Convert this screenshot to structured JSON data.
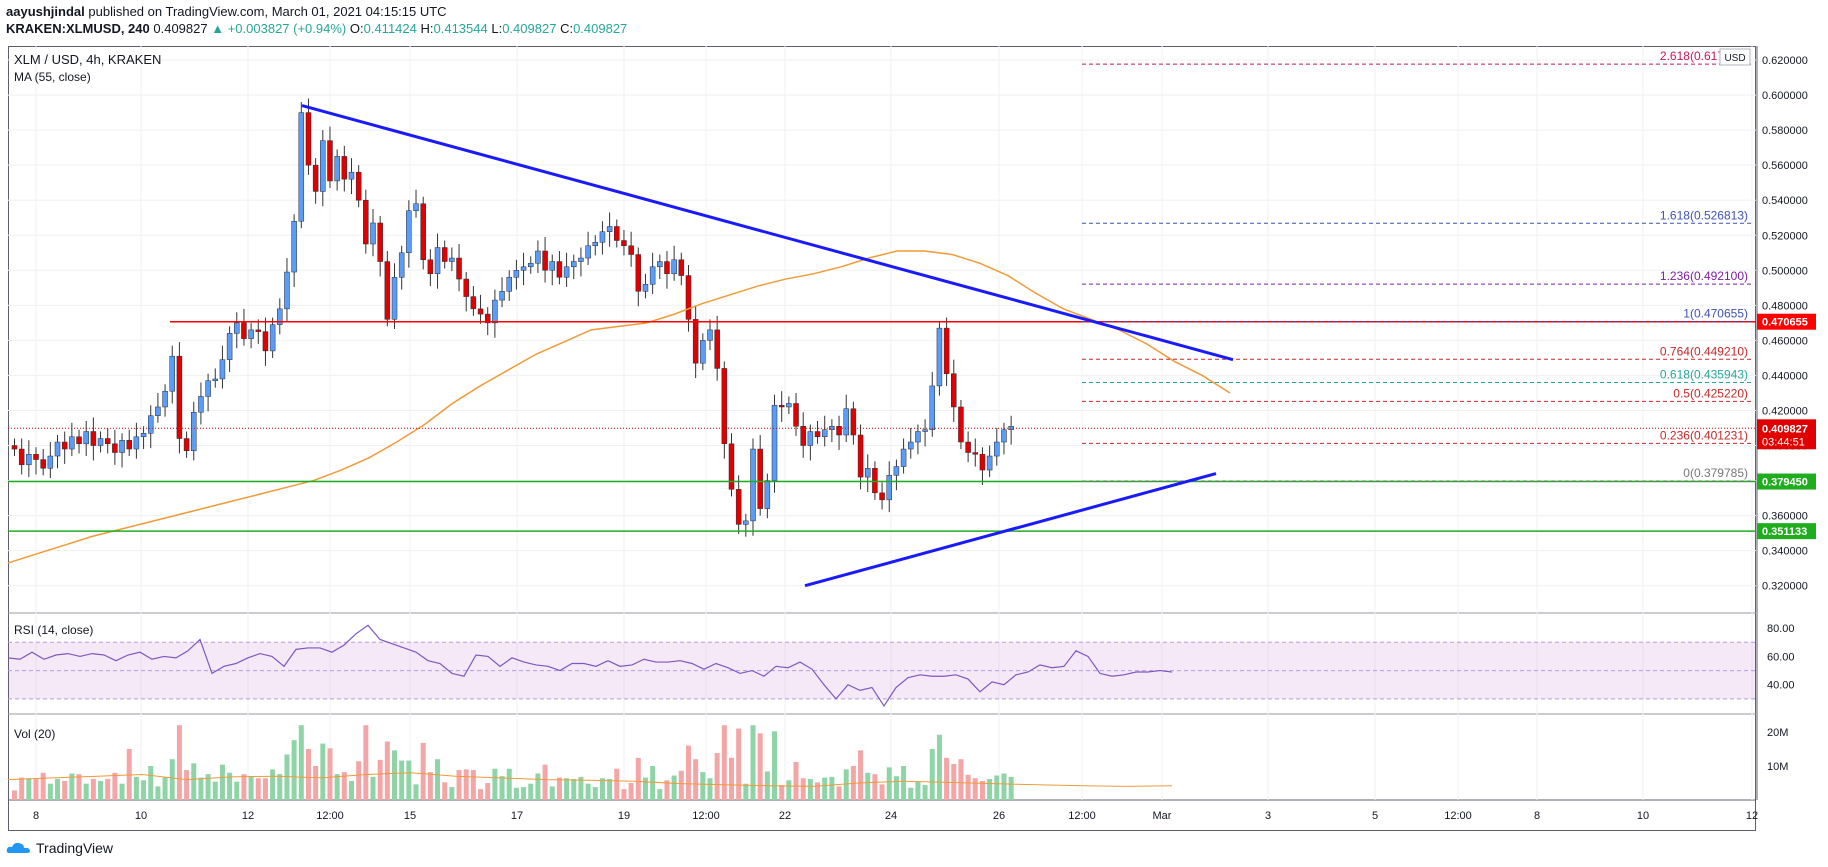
{
  "header": {
    "publisher": "aayushjindal",
    "published_text": "published on TradingView.com, March 01, 2021 04:15:15 UTC",
    "symbol": "KRAKEN:XLMUSD, 240",
    "last": "0.409827",
    "change": "▲ +0.003827 (+0.94%)",
    "o_label": "O:",
    "o": "0.411424",
    "h_label": "H:",
    "h": "0.413544",
    "l_label": "L:",
    "l": "0.409827",
    "c_label": "C:",
    "c": "0.409827"
  },
  "pane_main": {
    "title": "XLM / USD, 4h, KRAKEN",
    "ma_label": "MA (55, close)",
    "currency": "USD"
  },
  "pane_rsi": {
    "label": "RSI (14, close)"
  },
  "pane_vol": {
    "label": "Vol (20)"
  },
  "footer": {
    "brand": "TradingView"
  },
  "colors": {
    "up": "#5b9cf6",
    "down": "#e00000",
    "ma": "#f09a38",
    "trend": "#1a1aff",
    "resistance": "#ff0000",
    "support": "#1fad1f"
  },
  "chart_data": {
    "type": "candlestick",
    "title": "XLM / USD, 4h, KRAKEN",
    "ylim": [
      0.305,
      0.628
    ],
    "y_ticks": [
      "0.620000",
      "0.600000",
      "0.580000",
      "0.560000",
      "0.540000",
      "0.520000",
      "0.500000",
      "0.480000",
      "0.460000",
      "0.440000",
      "0.420000",
      "0.400000",
      "0.380000",
      "0.360000",
      "0.340000",
      "0.320000"
    ],
    "x_ticks": [
      "8",
      "10",
      "12",
      "12:00",
      "15",
      "17",
      "19",
      "12:00",
      "22",
      "24",
      "26",
      "12:00",
      "Mar",
      "3",
      "5",
      "12:00",
      "8",
      "10",
      "12"
    ],
    "ohlc_close": [
      0.398,
      0.389,
      0.395,
      0.392,
      0.387,
      0.394,
      0.402,
      0.398,
      0.405,
      0.401,
      0.408,
      0.4,
      0.404,
      0.401,
      0.396,
      0.403,
      0.398,
      0.405,
      0.407,
      0.417,
      0.422,
      0.431,
      0.451,
      0.404,
      0.397,
      0.419,
      0.428,
      0.437,
      0.438,
      0.449,
      0.464,
      0.47,
      0.461,
      0.466,
      0.465,
      0.454,
      0.469,
      0.478,
      0.499,
      0.528,
      0.59,
      0.56,
      0.545,
      0.574,
      0.551,
      0.565,
      0.552,
      0.556,
      0.54,
      0.515,
      0.527,
      0.505,
      0.472,
      0.496,
      0.51,
      0.534,
      0.538,
      0.506,
      0.498,
      0.513,
      0.505,
      0.507,
      0.495,
      0.485,
      0.478,
      0.475,
      0.47,
      0.483,
      0.488,
      0.496,
      0.5,
      0.502,
      0.504,
      0.511,
      0.5,
      0.505,
      0.496,
      0.502,
      0.505,
      0.507,
      0.514,
      0.516,
      0.522,
      0.525,
      0.517,
      0.514,
      0.509,
      0.488,
      0.492,
      0.502,
      0.505,
      0.498,
      0.506,
      0.497,
      0.472,
      0.447,
      0.46,
      0.466,
      0.444,
      0.401,
      0.375,
      0.355,
      0.357,
      0.398,
      0.364,
      0.38,
      0.423,
      0.422,
      0.424,
      0.411,
      0.4,
      0.408,
      0.405,
      0.409,
      0.411,
      0.406,
      0.421,
      0.406,
      0.382,
      0.387,
      0.373,
      0.369,
      0.383,
      0.388,
      0.398,
      0.402,
      0.408,
      0.409,
      0.434,
      0.467,
      0.441,
      0.422,
      0.402,
      0.396,
      0.395,
      0.386,
      0.394,
      0.402,
      0.409,
      0.411
    ],
    "ma55": [
      0.333,
      0.338,
      0.343,
      0.348,
      0.352,
      0.356,
      0.36,
      0.364,
      0.368,
      0.372,
      0.376,
      0.38,
      0.386,
      0.393,
      0.402,
      0.412,
      0.424,
      0.434,
      0.443,
      0.452,
      0.459,
      0.466,
      0.468,
      0.47,
      0.475,
      0.481,
      0.486,
      0.491,
      0.495,
      0.498,
      0.502,
      0.507,
      0.511,
      0.511,
      0.509,
      0.504,
      0.497,
      0.487,
      0.478,
      0.472,
      0.466,
      0.458,
      0.448,
      0.44,
      0.43
    ],
    "horizontal_levels": [
      {
        "value": 0.470655,
        "label": "0.470655"
      },
      {
        "value": 0.37945,
        "label": "0.379450"
      },
      {
        "value": 0.351133,
        "label": "0.351133"
      }
    ],
    "last_price": {
      "value": "0.409827",
      "countdown": "03:44:51"
    },
    "fibonacci": [
      {
        "ratio": "2.618",
        "value": "0.617682"
      },
      {
        "ratio": "1.618",
        "value": "0.526813"
      },
      {
        "ratio": "1.236",
        "value": "0.492100"
      },
      {
        "ratio": "1",
        "value": "0.470655"
      },
      {
        "ratio": "0.764",
        "value": "0.449210"
      },
      {
        "ratio": "0.618",
        "value": "0.435943"
      },
      {
        "ratio": "0.5",
        "value": "0.425220"
      },
      {
        "ratio": "0.236",
        "value": "0.401231"
      },
      {
        "ratio": "0",
        "value": "0.379785"
      }
    ],
    "rsi": {
      "upper": "80.00",
      "mid": "60.00",
      "lower": "40.00",
      "upper_band": 70,
      "lower_band": 30,
      "ylim": [
        20,
        90
      ],
      "values": [
        59,
        58,
        63,
        58,
        61,
        62,
        60,
        62,
        61,
        57,
        61,
        63,
        58,
        60,
        59,
        64,
        72,
        48,
        53,
        55,
        59,
        62,
        60,
        53,
        65,
        66,
        66,
        63,
        68,
        76,
        82,
        72,
        69,
        66,
        63,
        57,
        55,
        48,
        46,
        61,
        60,
        53,
        59,
        56,
        54,
        53,
        50,
        55,
        55,
        53,
        57,
        53,
        54,
        58,
        56,
        56,
        57,
        55,
        51,
        55,
        52,
        48,
        50,
        46,
        53,
        52,
        56,
        51,
        40,
        30,
        40,
        36,
        38,
        25,
        38,
        45,
        47,
        46,
        46,
        47,
        44,
        35,
        42,
        40,
        47,
        49,
        54,
        52,
        53,
        64,
        60,
        48,
        46,
        47,
        49,
        49,
        50,
        49
      ]
    },
    "volume": {
      "ticks": [
        "20M",
        "10M"
      ],
      "ylim": [
        0,
        25
      ]
    }
  }
}
